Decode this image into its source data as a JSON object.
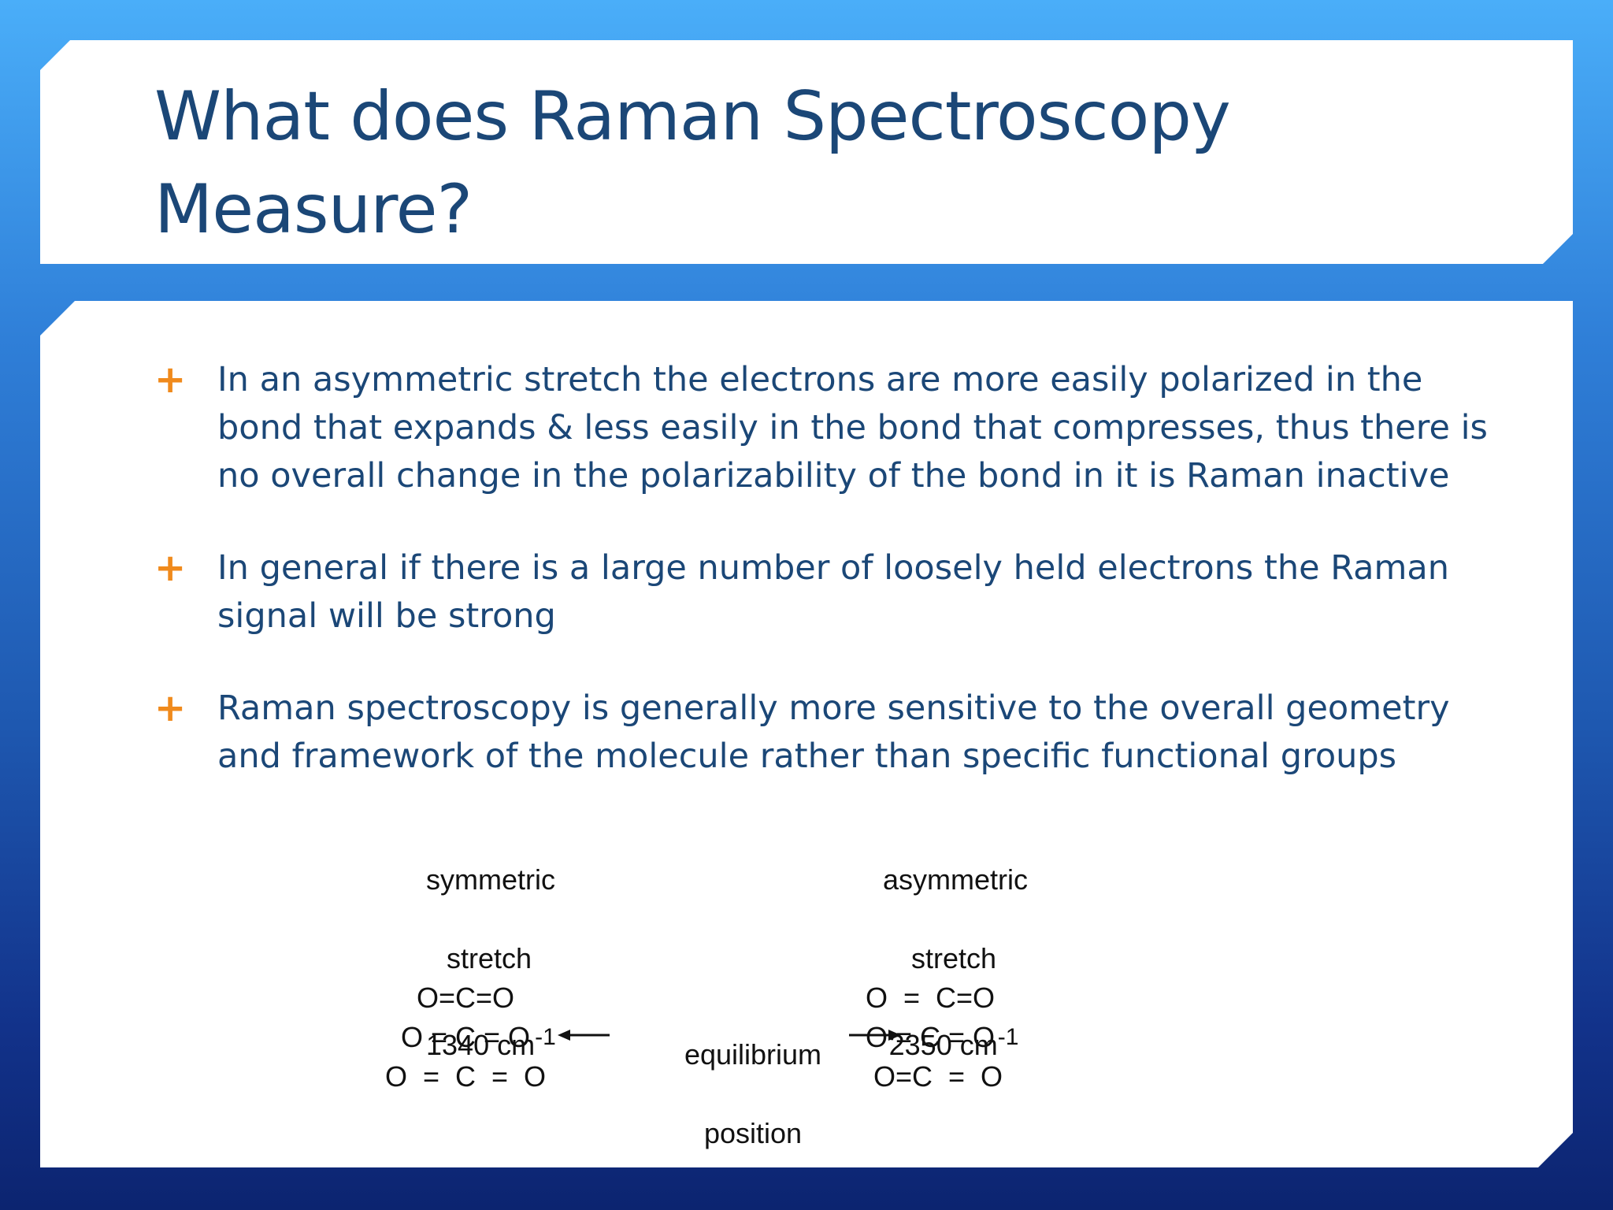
{
  "title": {
    "line1": "What does Raman Spectroscopy",
    "line2": "Measure?"
  },
  "bullet_marker": "+",
  "bullets": [
    {
      "lines": [
        "In an asymmetric stretch the electrons are more easily polarized in the",
        "bond that expands & less easily in the bond that compresses, thus there is",
        "no overall change in the polarizability of the bond in it is Raman inactive"
      ]
    },
    {
      "lines": [
        "In general if there is a large number of loosely held electrons the Raman",
        "signal will be strong"
      ]
    },
    {
      "lines": [
        "Raman spectroscopy is generally more sensitive to the overall geometry",
        "and framework of the molecule rather than specific functional groups"
      ]
    }
  ],
  "diagram": {
    "symmetric": {
      "label1": "symmetric",
      "label2": "stretch",
      "wavenumber": "1340 cm",
      "exponent": "-1",
      "structures": [
        "O=C=O",
        "O = C = O",
        "O  =  C  =  O"
      ]
    },
    "center": {
      "line1": "equilibrium",
      "line2": "position"
    },
    "asymmetric": {
      "label1": "asymmetric",
      "label2": "stretch",
      "wavenumber": "2350 cm",
      "exponent": "-1",
      "structures": [
        "O  =  C=O",
        "O = C = O",
        "O=C  =  O"
      ]
    }
  },
  "colors": {
    "title_text": "#1b4777",
    "body_text": "#1b4777",
    "bullet_marker": "#f08a1c",
    "background_top": "#4aaef9",
    "background_bottom": "#0c2470"
  }
}
